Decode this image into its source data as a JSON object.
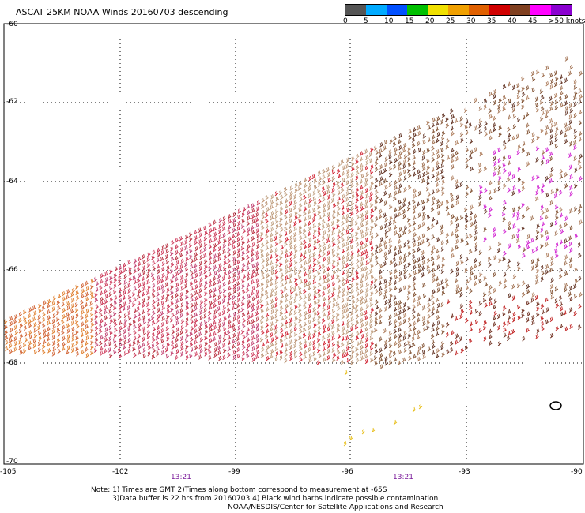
{
  "title": "ASCAT 25KM NOAA Winds 20160703 descending",
  "colorbar": {
    "colors": [
      "#555555",
      "#00aaff",
      "#0050ff",
      "#00c000",
      "#f0e000",
      "#f0a000",
      "#e06000",
      "#d00000",
      "#804020",
      "#ff00ff",
      "#8a00d0"
    ],
    "labels": [
      "0",
      "5",
      "10",
      "15",
      "20",
      "25",
      "30",
      "35",
      "40",
      "45",
      ">50 knots"
    ]
  },
  "lat_labels": [
    "-60",
    "-62",
    "-64",
    "-66",
    "-68",
    "-70"
  ],
  "lon_labels": [
    "-105",
    "-102",
    "-99",
    "-96",
    "-93",
    "-90"
  ],
  "time_labels": [
    "13:21",
    "13:21"
  ],
  "notes": [
    "Note: 1) Times are GMT 2)Times along bottom correspond to measurement at -65S",
    "3)Data buffer is 22 hrs from 20160703 4) Black wind barbs indicate possible contamination",
    "NOAA/NESDIS/Center for Satellite Applications and Research"
  ]
}
